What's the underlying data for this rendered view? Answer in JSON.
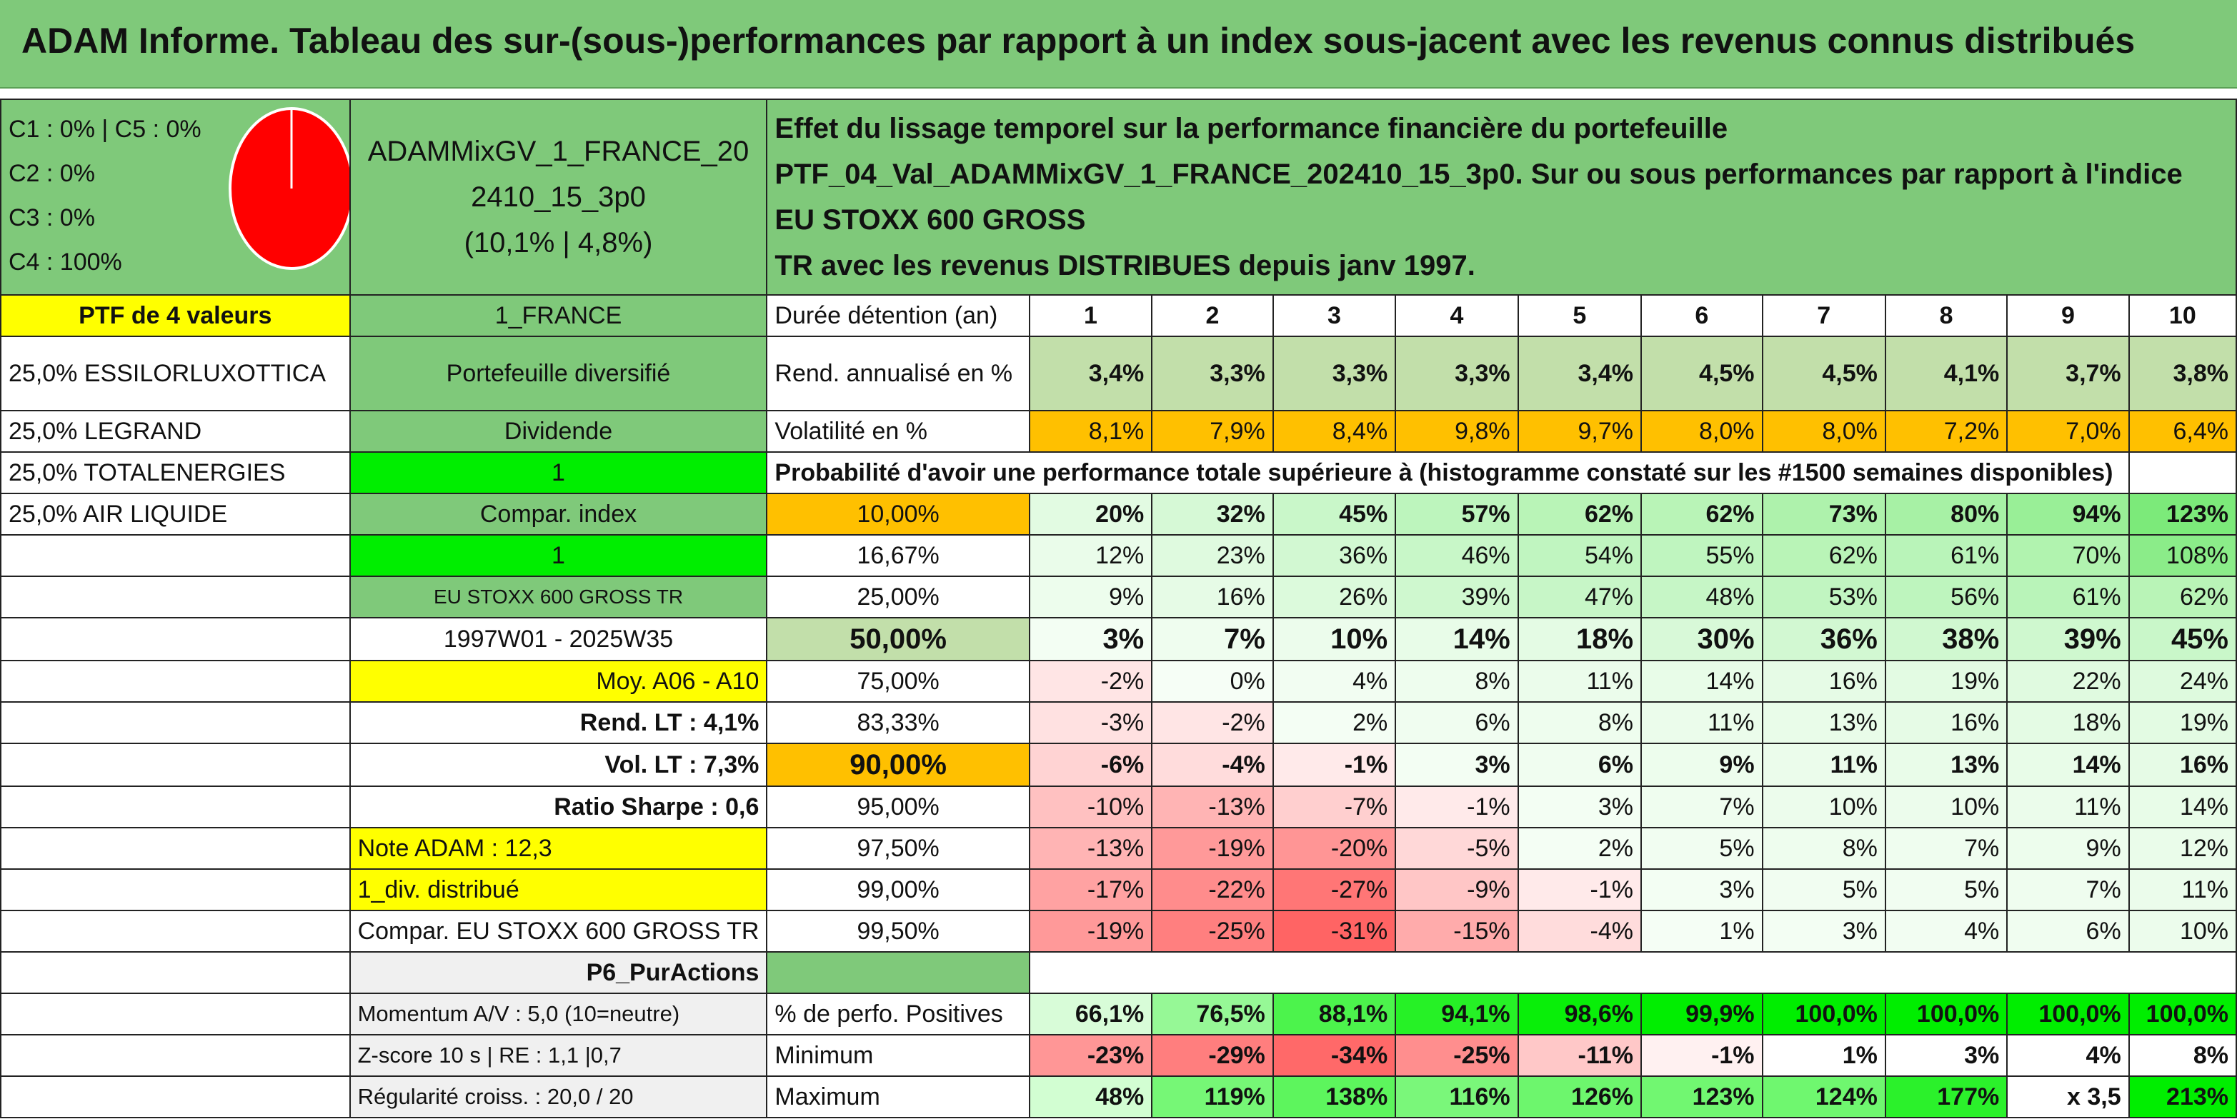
{
  "title": "ADAM Informe. Tableau des sur-(sous-)performances par rapport à un index sous-jacent avec les revenus connus distribués",
  "class_lines": [
    "C1 : 0% | C5 : 0%",
    "C2 : 0%",
    "C3 : 0%",
    "C4 : 100%"
  ],
  "pie": {
    "color": "#ff0000",
    "share": 1.0
  },
  "portfolio": {
    "name_line1": "ADAMMixGV_1_FRANCE_20",
    "name_line2": "2410_15_3p0",
    "name_line3": "(10,1% | 4,8%)"
  },
  "description": {
    "line1": "Effet du lissage temporel sur la performance financière du portefeuille",
    "line2": "PTF_04_Val_ADAMMixGV_1_FRANCE_202410_15_3p0. Sur ou sous performances par rapport à l'indice EU STOXX 600 GROSS",
    "line3": "TR avec les revenus DISTRIBUES depuis janv 1997."
  },
  "left_labels": {
    "ptf_count": "PTF de 4 valeurs",
    "holdings": [
      "25,0% ESSILORLUXOTTICA",
      "25,0% LEGRAND",
      "25,0% TOTALENERGIES",
      "25,0% AIR LIQUIDE"
    ]
  },
  "mid_labels": {
    "country": "1_FRANCE",
    "type": "Portefeuille diversifié",
    "dividend": "Dividende",
    "one_a": "1",
    "compar_index": "Compar. index",
    "one_b": "1",
    "index_name": "EU STOXX 600 GROSS TR",
    "period": "1997W01 - 2025W35",
    "avg": "Moy. A06 - A10",
    "rend_lt": "Rend. LT : 4,1%",
    "vol_lt": "Vol. LT : 7,3%",
    "sharpe": "Ratio Sharpe : 0,6",
    "note": "Note ADAM : 12,3",
    "div_distrib": "1_div. distribué",
    "compar_full": "Compar. EU STOXX 600 GROSS TR",
    "strategy": "P6_PurActions",
    "momentum": "Momentum A/V : 5,0 (10=neutre)",
    "zscore": "Z-score 10 s | RE : 1,1 |0,7",
    "regularite": "Régularité croiss. : 20,0 / 20"
  },
  "durations": {
    "label": "Durée détention (an)",
    "years": [
      "1",
      "2",
      "3",
      "4",
      "5",
      "6",
      "7",
      "8",
      "9",
      "10"
    ]
  },
  "rend": {
    "label": "Rend. annualisé en %",
    "values": [
      "3,4%",
      "3,3%",
      "3,3%",
      "3,3%",
      "3,4%",
      "4,5%",
      "4,5%",
      "4,1%",
      "3,7%",
      "3,8%"
    ]
  },
  "vol": {
    "label": "Volatilité en %",
    "values": [
      "8,1%",
      "7,9%",
      "8,4%",
      "9,8%",
      "9,7%",
      "8,0%",
      "8,0%",
      "7,2%",
      "7,0%",
      "6,4%"
    ]
  },
  "proba_header": "Probabilité d'avoir une performance totale supérieure à (histogramme constaté sur les #1500 semaines disponibles)",
  "quantiles": [
    {
      "q": "10,00%",
      "values": [
        "20%",
        "32%",
        "45%",
        "57%",
        "62%",
        "62%",
        "73%",
        "80%",
        "94%",
        "123%"
      ],
      "nums": [
        20,
        32,
        45,
        57,
        62,
        62,
        73,
        80,
        94,
        123
      ]
    },
    {
      "q": "16,67%",
      "values": [
        "12%",
        "23%",
        "36%",
        "46%",
        "54%",
        "55%",
        "62%",
        "61%",
        "70%",
        "108%"
      ],
      "nums": [
        12,
        23,
        36,
        46,
        54,
        55,
        62,
        61,
        70,
        108
      ]
    },
    {
      "q": "25,00%",
      "values": [
        "9%",
        "16%",
        "26%",
        "39%",
        "47%",
        "48%",
        "53%",
        "56%",
        "61%",
        "62%"
      ],
      "nums": [
        9,
        16,
        26,
        39,
        47,
        48,
        53,
        56,
        61,
        62
      ]
    },
    {
      "q": "50,00%",
      "values": [
        "3%",
        "7%",
        "10%",
        "14%",
        "18%",
        "30%",
        "36%",
        "38%",
        "39%",
        "45%"
      ],
      "nums": [
        3,
        7,
        10,
        14,
        18,
        30,
        36,
        38,
        39,
        45
      ]
    },
    {
      "q": "75,00%",
      "values": [
        "-2%",
        "0%",
        "4%",
        "8%",
        "11%",
        "14%",
        "16%",
        "19%",
        "22%",
        "24%"
      ],
      "nums": [
        -2,
        0,
        4,
        8,
        11,
        14,
        16,
        19,
        22,
        24
      ]
    },
    {
      "q": "83,33%",
      "values": [
        "-3%",
        "-2%",
        "2%",
        "6%",
        "8%",
        "11%",
        "13%",
        "16%",
        "18%",
        "19%"
      ],
      "nums": [
        -3,
        -2,
        2,
        6,
        8,
        11,
        13,
        16,
        18,
        19
      ]
    },
    {
      "q": "90,00%",
      "values": [
        "-6%",
        "-4%",
        "-1%",
        "3%",
        "6%",
        "9%",
        "11%",
        "13%",
        "14%",
        "16%"
      ],
      "nums": [
        -6,
        -4,
        -1,
        3,
        6,
        9,
        11,
        13,
        14,
        16
      ]
    },
    {
      "q": "95,00%",
      "values": [
        "-10%",
        "-13%",
        "-7%",
        "-1%",
        "3%",
        "7%",
        "10%",
        "10%",
        "11%",
        "14%"
      ],
      "nums": [
        -10,
        -13,
        -7,
        -1,
        3,
        7,
        10,
        10,
        11,
        14
      ]
    },
    {
      "q": "97,50%",
      "values": [
        "-13%",
        "-19%",
        "-20%",
        "-5%",
        "2%",
        "5%",
        "8%",
        "7%",
        "9%",
        "12%"
      ],
      "nums": [
        -13,
        -19,
        -20,
        -5,
        2,
        5,
        8,
        7,
        9,
        12
      ]
    },
    {
      "q": "99,00%",
      "values": [
        "-17%",
        "-22%",
        "-27%",
        "-9%",
        "-1%",
        "3%",
        "5%",
        "5%",
        "7%",
        "11%"
      ],
      "nums": [
        -17,
        -22,
        -27,
        -9,
        -1,
        3,
        5,
        5,
        7,
        11
      ]
    },
    {
      "q": "99,50%",
      "values": [
        "-19%",
        "-25%",
        "-31%",
        "-15%",
        "-4%",
        "1%",
        "3%",
        "4%",
        "6%",
        "10%"
      ],
      "nums": [
        -19,
        -25,
        -31,
        -15,
        -4,
        1,
        3,
        4,
        6,
        10
      ]
    }
  ],
  "stats": {
    "pos": {
      "label": "% de perfo. Positives",
      "values": [
        "66,1%",
        "76,5%",
        "88,1%",
        "94,1%",
        "98,6%",
        "99,9%",
        "100,0%",
        "100,0%",
        "100,0%",
        "100,0%"
      ],
      "nums": [
        66.1,
        76.5,
        88.1,
        94.1,
        98.6,
        99.9,
        100,
        100,
        100,
        100
      ]
    },
    "min": {
      "label": "Minimum",
      "values": [
        "-23%",
        "-29%",
        "-34%",
        "-25%",
        "-11%",
        "-1%",
        "1%",
        "3%",
        "4%",
        "8%"
      ],
      "nums": [
        -23,
        -29,
        -34,
        -25,
        -11,
        -1,
        1,
        3,
        4,
        8
      ]
    },
    "max": {
      "label": "Maximum",
      "values": [
        "48%",
        "119%",
        "138%",
        "116%",
        "126%",
        "123%",
        "124%",
        "177%",
        "x 3,5",
        "213%"
      ],
      "nums": [
        48,
        119,
        138,
        116,
        126,
        123,
        124,
        177,
        null,
        213
      ]
    }
  },
  "colors": {
    "header_green": "#7fc97a",
    "yellow": "#ffff00",
    "lime": "#00ee00",
    "orange": "#ffc000",
    "sage": "#c2dfaa",
    "red_text": "#e01010"
  }
}
